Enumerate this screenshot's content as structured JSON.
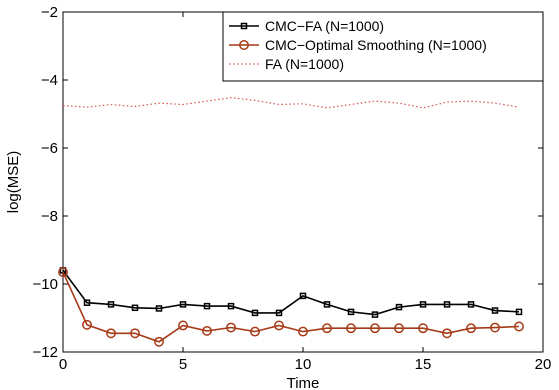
{
  "chart_data": {
    "type": "line",
    "title": "",
    "xlabel": "Time",
    "ylabel": "log(MSE)",
    "xlim": [
      0,
      20
    ],
    "ylim": [
      -12,
      -2
    ],
    "xticks": [
      0,
      5,
      10,
      15,
      20
    ],
    "yticks": [
      -12,
      -10,
      -8,
      -6,
      -4,
      -2
    ],
    "grid": false,
    "legend_position": "top-right",
    "x": [
      0,
      1,
      2,
      3,
      4,
      5,
      6,
      7,
      8,
      9,
      10,
      11,
      12,
      13,
      14,
      15,
      16,
      17,
      18,
      19
    ],
    "series": [
      {
        "name": "CMC−FA (N=1000)",
        "color": "#000000",
        "marker": "square",
        "line": "solid",
        "values": [
          -9.6,
          -10.55,
          -10.6,
          -10.7,
          -10.72,
          -10.6,
          -10.65,
          -10.65,
          -10.85,
          -10.85,
          -10.35,
          -10.6,
          -10.82,
          -10.9,
          -10.68,
          -10.6,
          -10.6,
          -10.6,
          -10.78,
          -10.82
        ]
      },
      {
        "name": "CMC−Optimal Smoothing (N=1000)",
        "color": "#a63a16",
        "marker": "circle",
        "line": "solid",
        "values": [
          -9.65,
          -11.2,
          -11.45,
          -11.45,
          -11.7,
          -11.22,
          -11.38,
          -11.28,
          -11.4,
          -11.22,
          -11.4,
          -11.3,
          -11.3,
          -11.3,
          -11.3,
          -11.3,
          -11.45,
          -11.3,
          -11.28,
          -11.25
        ]
      },
      {
        "name": "FA (N=1000)",
        "color": "#d9534f",
        "marker": "none",
        "line": "dotted",
        "values": [
          -4.75,
          -4.8,
          -4.72,
          -4.78,
          -4.68,
          -4.72,
          -4.62,
          -4.52,
          -4.6,
          -4.72,
          -4.7,
          -4.82,
          -4.72,
          -4.62,
          -4.68,
          -4.82,
          -4.65,
          -4.62,
          -4.68,
          -4.8
        ]
      }
    ]
  }
}
